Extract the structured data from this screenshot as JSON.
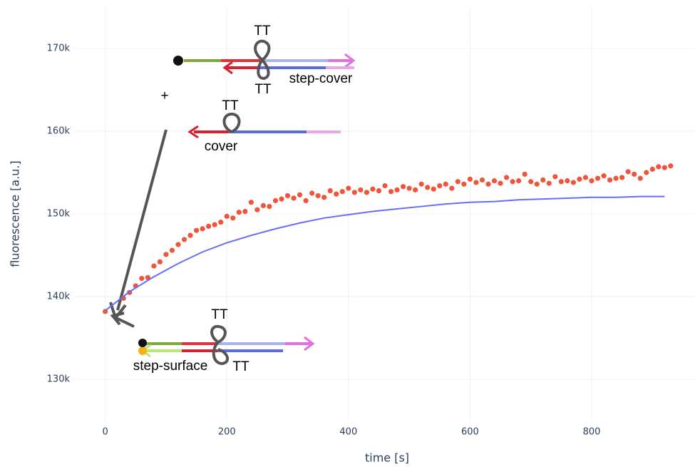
{
  "chart_data": {
    "type": "scatter",
    "xlabel": "time [s]",
    "ylabel": "fluorescence [a.u.]",
    "xlim": [
      -50,
      970
    ],
    "xticks": [
      0,
      200,
      400,
      600,
      800
    ],
    "ylim": [
      125000,
      175000
    ],
    "yticks": [
      {
        "value": 130000,
        "label": "130k"
      },
      {
        "value": 140000,
        "label": "140k"
      },
      {
        "value": 150000,
        "label": "150k"
      },
      {
        "value": 160000,
        "label": "160k"
      },
      {
        "value": 170000,
        "label": "170k"
      }
    ],
    "grid": true,
    "series": [
      {
        "mode": "markers",
        "color": "#ef553b",
        "x": [
          0,
          30,
          40,
          50,
          60,
          70,
          80,
          90,
          100,
          110,
          120,
          130,
          140,
          150,
          160,
          170,
          180,
          190,
          200,
          210,
          220,
          230,
          240,
          250,
          260,
          270,
          280,
          290,
          300,
          310,
          320,
          330,
          340,
          350,
          360,
          370,
          380,
          390,
          400,
          410,
          420,
          430,
          440,
          450,
          460,
          470,
          480,
          490,
          500,
          510,
          520,
          530,
          540,
          550,
          560,
          570,
          580,
          590,
          600,
          610,
          620,
          630,
          640,
          650,
          660,
          670,
          680,
          690,
          700,
          710,
          720,
          730,
          740,
          750,
          760,
          770,
          780,
          790,
          800,
          810,
          820,
          830,
          840,
          850,
          860,
          870,
          880,
          890,
          900,
          910,
          920,
          930
        ],
        "values": [
          138200,
          139800,
          140500,
          141300,
          142200,
          142300,
          143700,
          144200,
          145100,
          145600,
          146300,
          146900,
          147400,
          148000,
          148200,
          148500,
          148700,
          149000,
          149700,
          149500,
          150200,
          150300,
          151400,
          150500,
          151000,
          150900,
          151600,
          151800,
          152200,
          151900,
          152300,
          151600,
          152500,
          152200,
          152000,
          152800,
          152400,
          152700,
          153100,
          152600,
          152900,
          152600,
          153000,
          152800,
          153400,
          152700,
          152900,
          153300,
          153100,
          152900,
          153600,
          153200,
          153000,
          153400,
          153600,
          153100,
          153900,
          153600,
          154200,
          153800,
          154100,
          153600,
          154000,
          153700,
          154400,
          153900,
          154000,
          154800,
          153900,
          153600,
          154100,
          153700,
          154500,
          153900,
          154000,
          153800,
          154200,
          154400,
          154000,
          154300,
          154600,
          154100,
          154300,
          154400,
          155100,
          154800,
          154300,
          155000,
          155400,
          155700,
          155600,
          155800
        ]
      },
      {
        "mode": "lines",
        "color": "#636efa",
        "x": [
          0,
          40,
          80,
          120,
          160,
          200,
          240,
          280,
          320,
          360,
          400,
          440,
          480,
          520,
          560,
          600,
          640,
          680,
          720,
          760,
          800,
          840,
          880,
          920
        ],
        "values": [
          138300,
          140600,
          142400,
          144000,
          145400,
          146500,
          147400,
          148200,
          148900,
          149500,
          149900,
          150300,
          150600,
          150900,
          151200,
          151400,
          151500,
          151700,
          151800,
          151900,
          152000,
          152000,
          152100,
          152100
        ]
      }
    ],
    "annotations": [
      "TT",
      "TT",
      "step-cover",
      "+",
      "TT",
      "cover",
      "TT",
      "TT",
      "step-surface"
    ]
  }
}
